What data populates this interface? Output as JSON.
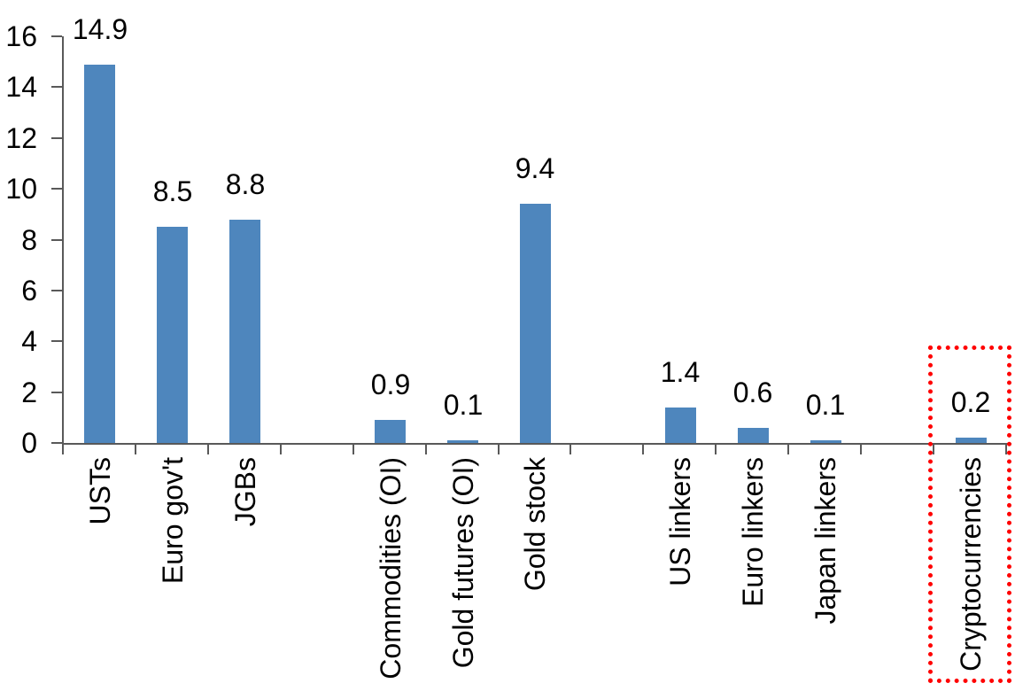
{
  "chart_data": {
    "type": "bar",
    "title": "",
    "xlabel": "",
    "ylabel": "",
    "ylim": [
      0,
      16
    ],
    "y_ticks": [
      {
        "value": 0,
        "label": "0"
      },
      {
        "value": 2,
        "label": "2"
      },
      {
        "value": 4,
        "label": "4"
      },
      {
        "value": 6,
        "label": "6"
      },
      {
        "value": 8,
        "label": "8"
      },
      {
        "value": 10,
        "label": "10"
      },
      {
        "value": 12,
        "label": "12"
      },
      {
        "value": 14,
        "label": "14"
      },
      {
        "value": 16,
        "label": "16"
      }
    ],
    "num_slots": 13,
    "grid": false,
    "legend": false,
    "bar_color": "#4e86bd",
    "axis_color": "#595959",
    "label_color": "#000000",
    "bars": [
      {
        "category": "USTs",
        "value": 14.9,
        "label": "14.9",
        "slot": 0
      },
      {
        "category": "Euro gov't",
        "value": 8.5,
        "label": "8.5",
        "slot": 1
      },
      {
        "category": "JGBs",
        "value": 8.8,
        "label": "8.8",
        "slot": 2
      },
      {
        "category": "Commodities (OI)",
        "value": 0.9,
        "label": "0.9",
        "slot": 4
      },
      {
        "category": "Gold futures (OI)",
        "value": 0.1,
        "label": "0.1",
        "slot": 5
      },
      {
        "category": "Gold stock",
        "value": 9.4,
        "label": "9.4",
        "slot": 6
      },
      {
        "category": "US linkers",
        "value": 1.4,
        "label": "1.4",
        "slot": 8
      },
      {
        "category": "Euro linkers",
        "value": 0.6,
        "label": "0.6",
        "slot": 9
      },
      {
        "category": "Japan linkers",
        "value": 0.1,
        "label": "0.1",
        "slot": 10
      },
      {
        "category": "Cryptocurrencies",
        "value": 0.2,
        "label": "0.2",
        "slot": 12
      }
    ],
    "highlight": {
      "category": "Cryptocurrencies",
      "style": "dotted-box",
      "color": "#ff0000"
    }
  }
}
